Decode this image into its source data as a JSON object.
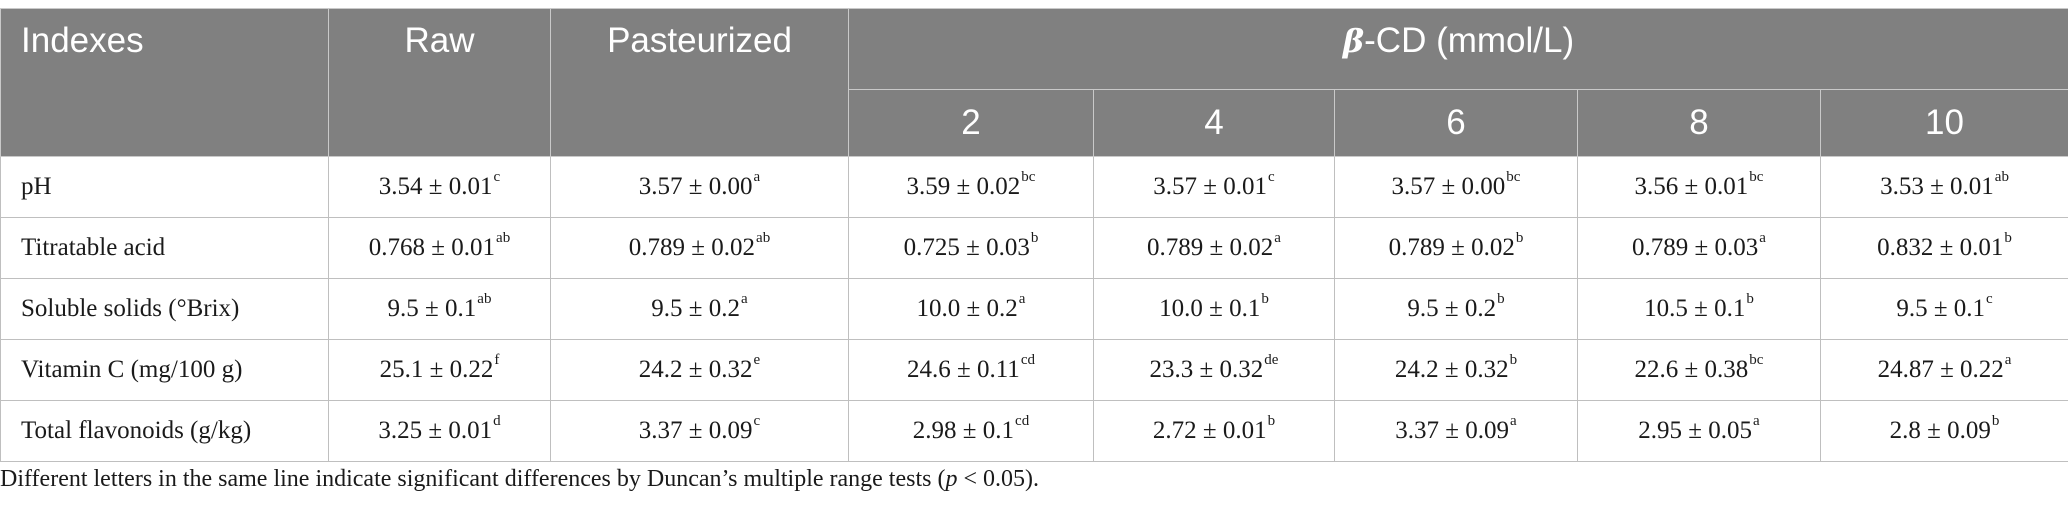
{
  "table": {
    "headers": {
      "indexes": "Indexes",
      "raw": "Raw",
      "pasteurized": "Pasteurized",
      "group_symbol": "β",
      "group_rest": "-CD (mmol/L)",
      "concentrations": [
        "2",
        "4",
        "6",
        "8",
        "10"
      ]
    },
    "rows": [
      {
        "label": "pH",
        "cells": [
          {
            "v": "3.54 ± 0.01",
            "s": "c"
          },
          {
            "v": "3.57 ± 0.00",
            "s": "a"
          },
          {
            "v": "3.59 ± 0.02",
            "s": "bc"
          },
          {
            "v": "3.57 ± 0.01",
            "s": "c"
          },
          {
            "v": "3.57 ± 0.00",
            "s": "bc"
          },
          {
            "v": "3.56 ± 0.01",
            "s": "bc"
          },
          {
            "v": "3.53 ± 0.01",
            "s": "ab"
          }
        ]
      },
      {
        "label": "Titratable acid",
        "cells": [
          {
            "v": "0.768 ± 0.01",
            "s": "ab"
          },
          {
            "v": "0.789 ± 0.02",
            "s": "ab"
          },
          {
            "v": "0.725 ± 0.03",
            "s": "b"
          },
          {
            "v": "0.789 ± 0.02",
            "s": "a"
          },
          {
            "v": "0.789 ± 0.02",
            "s": "b"
          },
          {
            "v": "0.789 ± 0.03",
            "s": "a"
          },
          {
            "v": "0.832 ± 0.01",
            "s": "b"
          }
        ]
      },
      {
        "label": "Soluble solids (°Brix)",
        "cells": [
          {
            "v": "9.5 ± 0.1",
            "s": "ab"
          },
          {
            "v": "9.5 ± 0.2",
            "s": "a"
          },
          {
            "v": "10.0 ± 0.2",
            "s": "a"
          },
          {
            "v": "10.0 ± 0.1",
            "s": "b"
          },
          {
            "v": "9.5 ± 0.2",
            "s": "b"
          },
          {
            "v": "10.5 ± 0.1",
            "s": "b"
          },
          {
            "v": "9.5 ± 0.1",
            "s": "c"
          }
        ]
      },
      {
        "label": "Vitamin C (mg/100 g)",
        "cells": [
          {
            "v": "25.1 ± 0.22",
            "s": "f"
          },
          {
            "v": "24.2 ± 0.32",
            "s": "e"
          },
          {
            "v": "24.6 ± 0.11",
            "s": "cd"
          },
          {
            "v": "23.3 ± 0.32",
            "s": "de"
          },
          {
            "v": "24.2 ± 0.32",
            "s": "b"
          },
          {
            "v": "22.6 ± 0.38",
            "s": "bc"
          },
          {
            "v": "24.87 ± 0.22",
            "s": "a"
          }
        ]
      },
      {
        "label": "Total flavonoids (g/kg)",
        "cells": [
          {
            "v": "3.25 ± 0.01",
            "s": "d"
          },
          {
            "v": "3.37 ± 0.09",
            "s": "c"
          },
          {
            "v": "2.98 ± 0.1",
            "s": "cd"
          },
          {
            "v": "2.72 ± 0.01",
            "s": "b"
          },
          {
            "v": "3.37 ± 0.09",
            "s": "a"
          },
          {
            "v": "2.95 ± 0.05",
            "s": "a"
          },
          {
            "v": "2.8 ± 0.09",
            "s": "b"
          }
        ]
      }
    ]
  },
  "footnote": {
    "before": "Different letters in the same line indicate significant differences by Duncan’s multiple range tests (",
    "p": "p",
    "after": " < 0.05)."
  }
}
